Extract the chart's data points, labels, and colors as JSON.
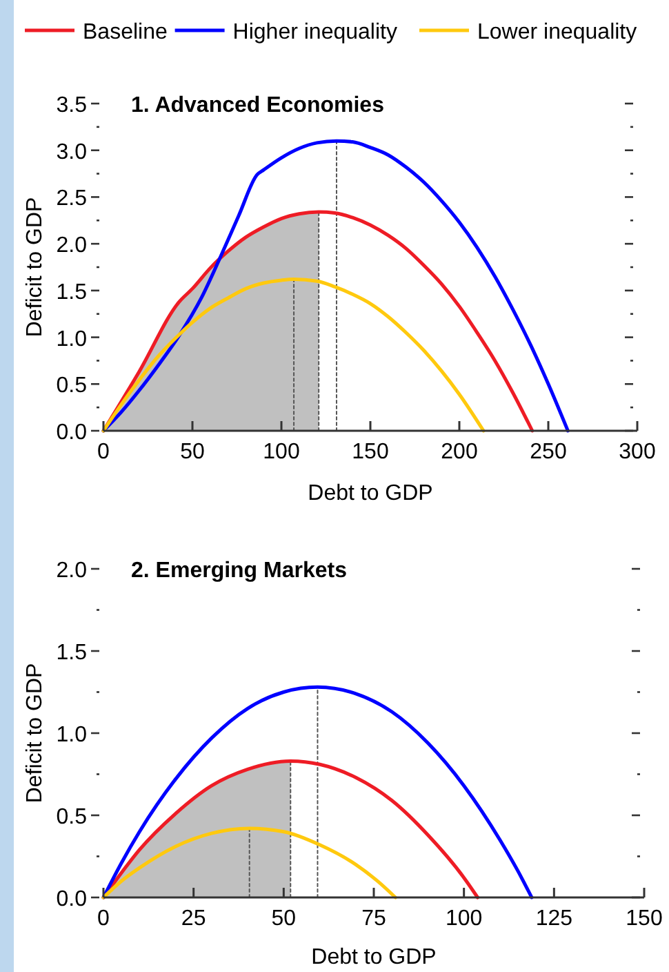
{
  "chart_data": [
    {
      "type": "line",
      "title": "1. Advanced Economies",
      "xlabel": "Debt to GDP",
      "ylabel": "Deficit to GDP",
      "legend": "top",
      "xlim": [
        0,
        300
      ],
      "xticks": [
        0,
        50,
        100,
        150,
        200,
        250,
        300
      ],
      "ylim": [
        0,
        3.5
      ],
      "yticks": [
        {
          "value": 0,
          "label": "0.0"
        },
        {
          "value": 0.25,
          "label": null
        },
        {
          "value": 0.5,
          "label": "0.5"
        },
        {
          "value": 0.75,
          "label": null
        },
        {
          "value": 1,
          "label": "1.0"
        },
        {
          "value": 1.25,
          "label": null
        },
        {
          "value": 1.5,
          "label": "1.5"
        },
        {
          "value": 1.75,
          "label": null
        },
        {
          "value": 2,
          "label": "2.0"
        },
        {
          "value": 2.25,
          "label": null
        },
        {
          "value": 2.5,
          "label": "2.5"
        },
        {
          "value": 2.75,
          "label": null
        },
        {
          "value": 3,
          "label": "3.0"
        },
        {
          "value": 3.25,
          "label": null
        },
        {
          "value": 3.5,
          "label": "3.5"
        }
      ],
      "series": [
        {
          "type": "area",
          "color": "#c0c0c0",
          "x": [
            0,
            20,
            42.6,
            50,
            60,
            70,
            80,
            90,
            100,
            110,
            121
          ],
          "values": [
            0,
            0.63,
            1.38,
            1.52,
            1.74,
            1.92,
            2.07,
            2.18,
            2.27,
            2.32,
            2.34
          ]
        },
        {
          "type": "line",
          "line_style": "dotted",
          "color": "#555555",
          "x": [
            107,
            107
          ],
          "values": [
            0,
            1.62
          ]
        },
        {
          "type": "line",
          "line_style": "dotted",
          "color": "#555555",
          "x": [
            121,
            121
          ],
          "values": [
            0,
            2.34
          ]
        },
        {
          "type": "line",
          "line_style": "dotted",
          "color": "#555555",
          "x": [
            131,
            131
          ],
          "values": [
            0,
            3.1
          ]
        },
        {
          "name": "Baseline",
          "color": "#ee1c25",
          "x": [
            0,
            20,
            42.6,
            50,
            60,
            70,
            80,
            90,
            100,
            110,
            121,
            130,
            140,
            150,
            160,
            170,
            180,
            190,
            200,
            210,
            220,
            230,
            241
          ],
          "values": [
            0,
            0.63,
            1.38,
            1.52,
            1.74,
            1.92,
            2.07,
            2.18,
            2.27,
            2.32,
            2.34,
            2.33,
            2.28,
            2.2,
            2.09,
            1.95,
            1.77,
            1.57,
            1.33,
            1.05,
            0.75,
            0.41,
            0
          ]
        },
        {
          "name": "Higher inequality",
          "color": "#0000ff",
          "x": [
            0,
            10,
            20,
            30,
            42.6,
            55,
            66,
            76,
            86.4,
            90,
            100,
            110,
            120,
            131,
            140,
            150,
            160,
            170,
            180,
            190,
            200,
            210,
            220,
            230,
            240,
            250,
            261
          ],
          "values": [
            0,
            0.2,
            0.43,
            0.68,
            1.02,
            1.42,
            1.87,
            2.3,
            2.74,
            2.79,
            2.92,
            3.02,
            3.08,
            3.1,
            3.09,
            3.03,
            2.95,
            2.82,
            2.66,
            2.46,
            2.23,
            1.96,
            1.65,
            1.3,
            0.92,
            0.5,
            0
          ]
        },
        {
          "name": "Lower inequality",
          "color": "#ffc90e",
          "x": [
            0,
            10,
            20,
            30,
            40,
            50,
            60,
            70,
            80,
            90,
            100,
            107,
            120,
            130,
            140,
            150,
            160,
            170,
            180,
            190,
            200,
            213.6
          ],
          "values": [
            0,
            0.28,
            0.54,
            0.78,
            0.98,
            1.16,
            1.31,
            1.42,
            1.52,
            1.58,
            1.61,
            1.62,
            1.6,
            1.54,
            1.46,
            1.36,
            1.22,
            1.05,
            0.86,
            0.64,
            0.39,
            0
          ]
        }
      ]
    },
    {
      "type": "line",
      "title": "2. Emerging Markets",
      "xlabel": "Debt to GDP",
      "ylabel": "Deficit to GDP",
      "xlim": [
        0,
        150
      ],
      "xticks": [
        0,
        25,
        50,
        75,
        100,
        125,
        150
      ],
      "ylim": [
        0,
        2
      ],
      "yticks": [
        {
          "value": 0,
          "label": "0.0"
        },
        {
          "value": 0.25,
          "label": null
        },
        {
          "value": 0.5,
          "label": "0.5"
        },
        {
          "value": 0.75,
          "label": null
        },
        {
          "value": 1,
          "label": "1.0"
        },
        {
          "value": 1.25,
          "label": null
        },
        {
          "value": 1.5,
          "label": "1.5"
        },
        {
          "value": 1.75,
          "label": null
        },
        {
          "value": 2,
          "label": "2.0"
        }
      ],
      "series": [
        {
          "type": "area",
          "color": "#c0c0c0",
          "x": [
            0,
            5,
            10,
            20,
            30,
            40,
            51.9
          ],
          "values": [
            0,
            0.15,
            0.29,
            0.51,
            0.68,
            0.78,
            0.83
          ]
        },
        {
          "type": "line",
          "line_style": "dotted",
          "color": "#555555",
          "x": [
            40.5,
            40.5
          ],
          "values": [
            0,
            0.42
          ]
        },
        {
          "type": "line",
          "line_style": "dotted",
          "color": "#555555",
          "x": [
            51.9,
            51.9
          ],
          "values": [
            0,
            0.83
          ]
        },
        {
          "type": "line",
          "line_style": "dotted",
          "color": "#555555",
          "x": [
            59.4,
            59.4
          ],
          "values": [
            0,
            1.28
          ]
        },
        {
          "color": "#ee1c25",
          "x": [
            0,
            5,
            10,
            20,
            30,
            40,
            51.9,
            60,
            70,
            80,
            90,
            100,
            103.8
          ],
          "values": [
            0,
            0.15,
            0.29,
            0.51,
            0.68,
            0.78,
            0.83,
            0.81,
            0.73,
            0.59,
            0.38,
            0.12,
            0
          ]
        },
        {
          "color": "#0000ff",
          "x": [
            0,
            5,
            10,
            20,
            30,
            40,
            50,
            59.4,
            70,
            80,
            90,
            100,
            110,
            115,
            118.8
          ],
          "values": [
            0,
            0.21,
            0.4,
            0.72,
            0.97,
            1.15,
            1.25,
            1.28,
            1.24,
            1.13,
            0.94,
            0.68,
            0.35,
            0.16,
            0
          ]
        },
        {
          "color": "#ffc90e",
          "x": [
            0,
            5,
            10,
            20,
            30,
            40.5,
            50,
            60,
            70,
            76,
            81
          ],
          "values": [
            0,
            0.1,
            0.18,
            0.31,
            0.39,
            0.42,
            0.4,
            0.32,
            0.2,
            0.1,
            0
          ]
        }
      ]
    }
  ]
}
